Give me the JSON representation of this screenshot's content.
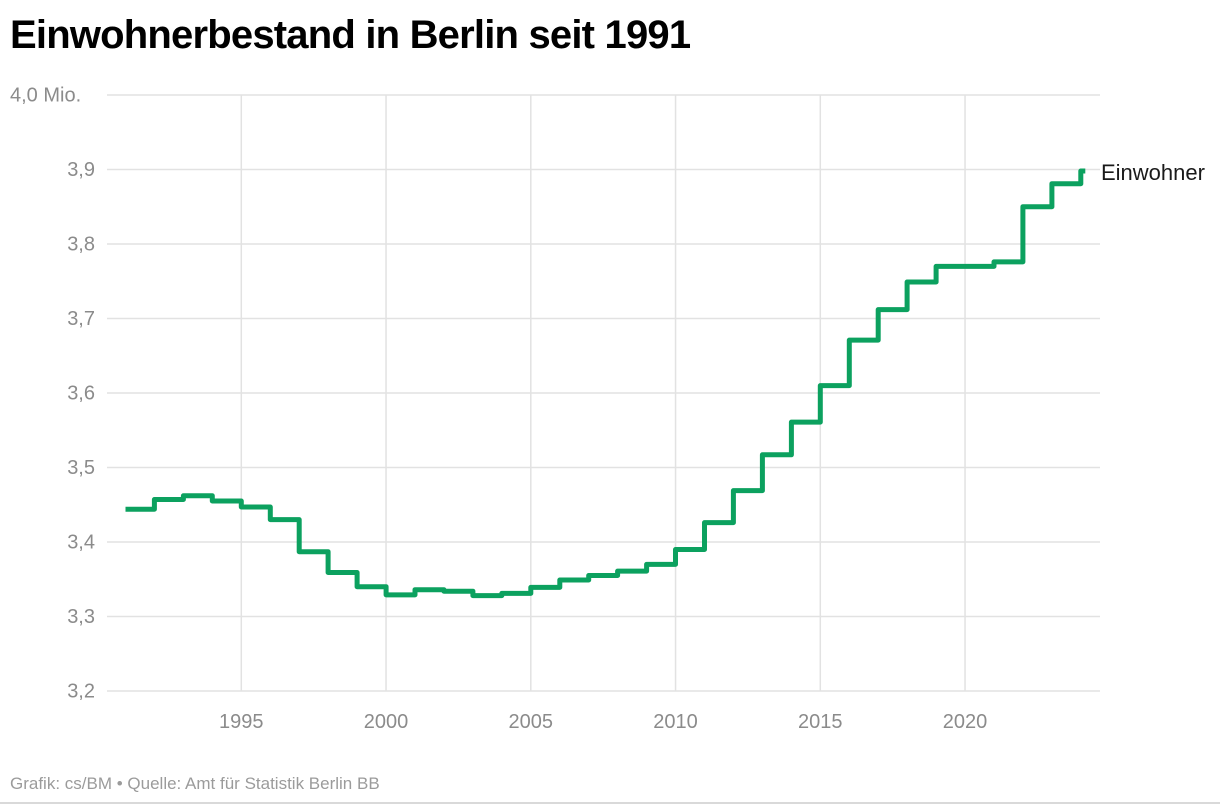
{
  "header": {
    "title": "Einwohnerbestand in Berlin seit 1991"
  },
  "chart_data": {
    "type": "line",
    "step": true,
    "title": "Einwohnerbestand in Berlin seit 1991",
    "unit": "Mio.",
    "x": [
      1991,
      1992,
      1993,
      1994,
      1995,
      1996,
      1997,
      1998,
      1999,
      2000,
      2001,
      2002,
      2003,
      2004,
      2005,
      2006,
      2007,
      2008,
      2009,
      2010,
      2011,
      2012,
      2013,
      2014,
      2015,
      2016,
      2017,
      2018,
      2019,
      2020,
      2021,
      2022,
      2023,
      2024
    ],
    "series": [
      {
        "name": "Einwohner",
        "values": [
          3.444,
          3.457,
          3.462,
          3.455,
          3.447,
          3.43,
          3.387,
          3.359,
          3.34,
          3.329,
          3.336,
          3.334,
          3.328,
          3.331,
          3.339,
          3.349,
          3.355,
          3.361,
          3.37,
          3.39,
          3.426,
          3.469,
          3.517,
          3.561,
          3.61,
          3.671,
          3.712,
          3.749,
          3.77,
          3.77,
          3.776,
          3.85,
          3.881,
          3.898
        ]
      }
    ],
    "ylim": [
      3.2,
      4.0
    ],
    "yticks": [
      {
        "v": 4.0,
        "label": "4,0 Mio."
      },
      {
        "v": 3.9,
        "label": "3,9"
      },
      {
        "v": 3.8,
        "label": "3,8"
      },
      {
        "v": 3.7,
        "label": "3,7"
      },
      {
        "v": 3.6,
        "label": "3,6"
      },
      {
        "v": 3.5,
        "label": "3,5"
      },
      {
        "v": 3.4,
        "label": "3,4"
      },
      {
        "v": 3.3,
        "label": "3,3"
      },
      {
        "v": 3.2,
        "label": "3,2"
      }
    ],
    "xticks": [
      {
        "v": 1995,
        "label": "1995"
      },
      {
        "v": 2000,
        "label": "2000"
      },
      {
        "v": 2005,
        "label": "2005"
      },
      {
        "v": 2010,
        "label": "2010"
      },
      {
        "v": 2015,
        "label": "2015"
      },
      {
        "v": 2020,
        "label": "2020"
      }
    ],
    "grid": true,
    "legend_position": "end-of-line",
    "colors": {
      "line": "#0ca15f",
      "grid": "#e2e2e2",
      "tick_label": "#8b8b8b",
      "legend_text": "#1a1a1a"
    }
  },
  "footer": {
    "credit": "Grafik: cs/BM • Quelle: Amt für Statistik Berlin BB"
  }
}
